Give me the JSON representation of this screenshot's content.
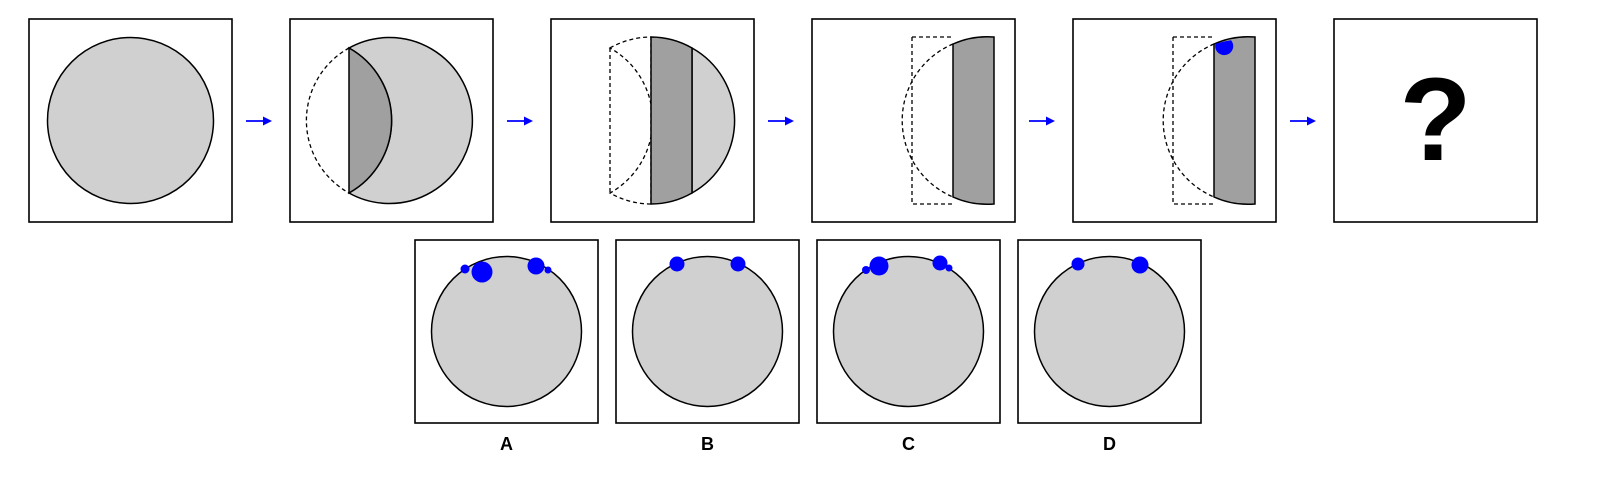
{
  "sequence": {
    "steps": [
      {
        "id": "step-1",
        "description_shape": "full-circle"
      },
      {
        "id": "step-2",
        "description_shape": "fold-left-segment"
      },
      {
        "id": "step-3",
        "description_shape": "fold-band"
      },
      {
        "id": "step-4",
        "description_shape": "folded-strip"
      },
      {
        "id": "step-5",
        "description_shape": "folded-strip-punched"
      }
    ],
    "question_mark": "?"
  },
  "options": [
    {
      "label": "A"
    },
    {
      "label": "B"
    },
    {
      "label": "C"
    },
    {
      "label": "D"
    }
  ],
  "colors": {
    "circle_fill": "#d0d0d0",
    "fold_fill": "#a0a0a0",
    "hole": "#0000ff",
    "arrow": "#0000ff",
    "border": "#000000"
  }
}
